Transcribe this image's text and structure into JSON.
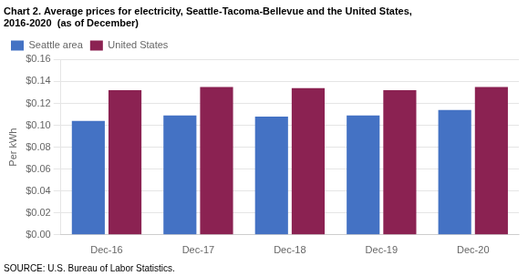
{
  "chart_data": {
    "type": "bar",
    "title": [
      "Chart 2. Average prices for electricity, Seattle-Tacoma-Bellevue and the United States,",
      "2016-2020  (as of December)"
    ],
    "y_label": "Per kWh",
    "annotations": [
      "SOURCE: U.S. Bureau of Labor Statistics."
    ],
    "categories": [
      "Dec-16",
      "Dec-17",
      "Dec-18",
      "Dec-19",
      "Dec-20"
    ],
    "series": [
      {
        "name": "Seattle area",
        "color": "#4472C4",
        "values": [
          0.104,
          0.109,
          0.108,
          0.109,
          0.114
        ]
      },
      {
        "name": "United States",
        "color": "#8B2252",
        "values": [
          0.132,
          0.135,
          0.134,
          0.132,
          0.135
        ]
      }
    ],
    "ylim": [
      0.0,
      0.16
    ],
    "yticks": [
      {
        "value": 0.0,
        "label": "$0.00"
      },
      {
        "value": 0.02,
        "label": "$0.02"
      },
      {
        "value": 0.04,
        "label": "$0.04"
      },
      {
        "value": 0.06,
        "label": "$0.06"
      },
      {
        "value": 0.08,
        "label": "$0.08"
      },
      {
        "value": 0.1,
        "label": "$0.10"
      },
      {
        "value": 0.12,
        "label": "$0.12"
      },
      {
        "value": 0.14,
        "label": "$0.14"
      },
      {
        "value": 0.16,
        "label": "$0.16"
      }
    ],
    "grid": true,
    "legend": "upper left"
  }
}
